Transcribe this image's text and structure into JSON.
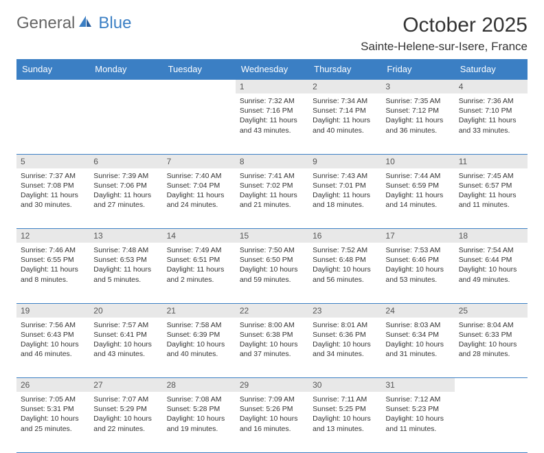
{
  "logo": {
    "general": "General",
    "blue": "Blue"
  },
  "title": "October 2025",
  "location": "Sainte-Helene-sur-Isere, France",
  "colors": {
    "header_bg": "#3b7fc4",
    "header_text": "#ffffff",
    "daynum_bg": "#e8e8e8",
    "border": "#3b7fc4",
    "text": "#333333",
    "logo_gray": "#666666",
    "logo_blue": "#3b7fc4"
  },
  "weekdays": [
    "Sunday",
    "Monday",
    "Tuesday",
    "Wednesday",
    "Thursday",
    "Friday",
    "Saturday"
  ],
  "weeks": [
    {
      "nums": [
        "",
        "",
        "",
        "1",
        "2",
        "3",
        "4"
      ],
      "cells": [
        null,
        null,
        null,
        {
          "sunrise": "Sunrise: 7:32 AM",
          "sunset": "Sunset: 7:16 PM",
          "day1": "Daylight: 11 hours",
          "day2": "and 43 minutes."
        },
        {
          "sunrise": "Sunrise: 7:34 AM",
          "sunset": "Sunset: 7:14 PM",
          "day1": "Daylight: 11 hours",
          "day2": "and 40 minutes."
        },
        {
          "sunrise": "Sunrise: 7:35 AM",
          "sunset": "Sunset: 7:12 PM",
          "day1": "Daylight: 11 hours",
          "day2": "and 36 minutes."
        },
        {
          "sunrise": "Sunrise: 7:36 AM",
          "sunset": "Sunset: 7:10 PM",
          "day1": "Daylight: 11 hours",
          "day2": "and 33 minutes."
        }
      ]
    },
    {
      "nums": [
        "5",
        "6",
        "7",
        "8",
        "9",
        "10",
        "11"
      ],
      "cells": [
        {
          "sunrise": "Sunrise: 7:37 AM",
          "sunset": "Sunset: 7:08 PM",
          "day1": "Daylight: 11 hours",
          "day2": "and 30 minutes."
        },
        {
          "sunrise": "Sunrise: 7:39 AM",
          "sunset": "Sunset: 7:06 PM",
          "day1": "Daylight: 11 hours",
          "day2": "and 27 minutes."
        },
        {
          "sunrise": "Sunrise: 7:40 AM",
          "sunset": "Sunset: 7:04 PM",
          "day1": "Daylight: 11 hours",
          "day2": "and 24 minutes."
        },
        {
          "sunrise": "Sunrise: 7:41 AM",
          "sunset": "Sunset: 7:02 PM",
          "day1": "Daylight: 11 hours",
          "day2": "and 21 minutes."
        },
        {
          "sunrise": "Sunrise: 7:43 AM",
          "sunset": "Sunset: 7:01 PM",
          "day1": "Daylight: 11 hours",
          "day2": "and 18 minutes."
        },
        {
          "sunrise": "Sunrise: 7:44 AM",
          "sunset": "Sunset: 6:59 PM",
          "day1": "Daylight: 11 hours",
          "day2": "and 14 minutes."
        },
        {
          "sunrise": "Sunrise: 7:45 AM",
          "sunset": "Sunset: 6:57 PM",
          "day1": "Daylight: 11 hours",
          "day2": "and 11 minutes."
        }
      ]
    },
    {
      "nums": [
        "12",
        "13",
        "14",
        "15",
        "16",
        "17",
        "18"
      ],
      "cells": [
        {
          "sunrise": "Sunrise: 7:46 AM",
          "sunset": "Sunset: 6:55 PM",
          "day1": "Daylight: 11 hours",
          "day2": "and 8 minutes."
        },
        {
          "sunrise": "Sunrise: 7:48 AM",
          "sunset": "Sunset: 6:53 PM",
          "day1": "Daylight: 11 hours",
          "day2": "and 5 minutes."
        },
        {
          "sunrise": "Sunrise: 7:49 AM",
          "sunset": "Sunset: 6:51 PM",
          "day1": "Daylight: 11 hours",
          "day2": "and 2 minutes."
        },
        {
          "sunrise": "Sunrise: 7:50 AM",
          "sunset": "Sunset: 6:50 PM",
          "day1": "Daylight: 10 hours",
          "day2": "and 59 minutes."
        },
        {
          "sunrise": "Sunrise: 7:52 AM",
          "sunset": "Sunset: 6:48 PM",
          "day1": "Daylight: 10 hours",
          "day2": "and 56 minutes."
        },
        {
          "sunrise": "Sunrise: 7:53 AM",
          "sunset": "Sunset: 6:46 PM",
          "day1": "Daylight: 10 hours",
          "day2": "and 53 minutes."
        },
        {
          "sunrise": "Sunrise: 7:54 AM",
          "sunset": "Sunset: 6:44 PM",
          "day1": "Daylight: 10 hours",
          "day2": "and 49 minutes."
        }
      ]
    },
    {
      "nums": [
        "19",
        "20",
        "21",
        "22",
        "23",
        "24",
        "25"
      ],
      "cells": [
        {
          "sunrise": "Sunrise: 7:56 AM",
          "sunset": "Sunset: 6:43 PM",
          "day1": "Daylight: 10 hours",
          "day2": "and 46 minutes."
        },
        {
          "sunrise": "Sunrise: 7:57 AM",
          "sunset": "Sunset: 6:41 PM",
          "day1": "Daylight: 10 hours",
          "day2": "and 43 minutes."
        },
        {
          "sunrise": "Sunrise: 7:58 AM",
          "sunset": "Sunset: 6:39 PM",
          "day1": "Daylight: 10 hours",
          "day2": "and 40 minutes."
        },
        {
          "sunrise": "Sunrise: 8:00 AM",
          "sunset": "Sunset: 6:38 PM",
          "day1": "Daylight: 10 hours",
          "day2": "and 37 minutes."
        },
        {
          "sunrise": "Sunrise: 8:01 AM",
          "sunset": "Sunset: 6:36 PM",
          "day1": "Daylight: 10 hours",
          "day2": "and 34 minutes."
        },
        {
          "sunrise": "Sunrise: 8:03 AM",
          "sunset": "Sunset: 6:34 PM",
          "day1": "Daylight: 10 hours",
          "day2": "and 31 minutes."
        },
        {
          "sunrise": "Sunrise: 8:04 AM",
          "sunset": "Sunset: 6:33 PM",
          "day1": "Daylight: 10 hours",
          "day2": "and 28 minutes."
        }
      ]
    },
    {
      "nums": [
        "26",
        "27",
        "28",
        "29",
        "30",
        "31",
        ""
      ],
      "cells": [
        {
          "sunrise": "Sunrise: 7:05 AM",
          "sunset": "Sunset: 5:31 PM",
          "day1": "Daylight: 10 hours",
          "day2": "and 25 minutes."
        },
        {
          "sunrise": "Sunrise: 7:07 AM",
          "sunset": "Sunset: 5:29 PM",
          "day1": "Daylight: 10 hours",
          "day2": "and 22 minutes."
        },
        {
          "sunrise": "Sunrise: 7:08 AM",
          "sunset": "Sunset: 5:28 PM",
          "day1": "Daylight: 10 hours",
          "day2": "and 19 minutes."
        },
        {
          "sunrise": "Sunrise: 7:09 AM",
          "sunset": "Sunset: 5:26 PM",
          "day1": "Daylight: 10 hours",
          "day2": "and 16 minutes."
        },
        {
          "sunrise": "Sunrise: 7:11 AM",
          "sunset": "Sunset: 5:25 PM",
          "day1": "Daylight: 10 hours",
          "day2": "and 13 minutes."
        },
        {
          "sunrise": "Sunrise: 7:12 AM",
          "sunset": "Sunset: 5:23 PM",
          "day1": "Daylight: 10 hours",
          "day2": "and 11 minutes."
        },
        null
      ]
    }
  ]
}
